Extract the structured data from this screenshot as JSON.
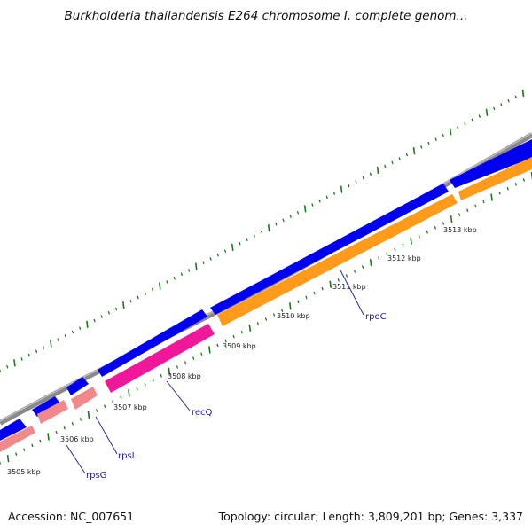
{
  "title": "Burkholderia thailandensis E264 chromosome I, complete genom...",
  "ticks": [
    "3505 kbp",
    "3506 kbp",
    "3507 kbp",
    "3508 kbp",
    "3509 kbp",
    "3510 kbp",
    "3511 kbp",
    "3512 kbp",
    "3513 kbp"
  ],
  "genes": [
    "rpsG",
    "rpsL",
    "recQ",
    "rpoC"
  ],
  "footer": {
    "accession": "Accession: NC_007651",
    "summary": "Topology: circular; Length: 3,809,201 bp; Genes: 3,337"
  },
  "colors": {
    "backbone": "#8a888a",
    "forward_cds": "#0000f0",
    "reverse_salmon": "#f08a8a",
    "reverse_pink": "#f0189a",
    "reverse_orange": "#ff9a1a",
    "gc_ticks": "#1a7a1a",
    "gene_label": "#1a1aa8"
  }
}
